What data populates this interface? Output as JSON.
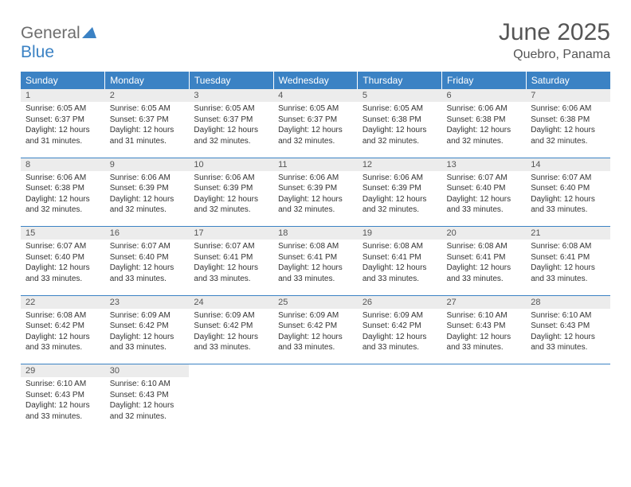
{
  "logo": {
    "text1": "General",
    "text2": "Blue"
  },
  "title": "June 2025",
  "location": "Quebro, Panama",
  "colors": {
    "header_bg": "#3b82c4",
    "header_text": "#ffffff",
    "daynum_bg": "#ececec",
    "body_text": "#333333",
    "title_text": "#555555",
    "logo_gray": "#6d6d6d",
    "logo_blue": "#3b82c4",
    "page_bg": "#ffffff"
  },
  "typography": {
    "title_fontsize": 30,
    "location_fontsize": 16,
    "weekday_fontsize": 12,
    "daynum_fontsize": 11,
    "body_fontsize": 10
  },
  "weekdays": [
    "Sunday",
    "Monday",
    "Tuesday",
    "Wednesday",
    "Thursday",
    "Friday",
    "Saturday"
  ],
  "weeks": [
    [
      {
        "n": "1",
        "sr": "Sunrise: 6:05 AM",
        "ss": "Sunset: 6:37 PM",
        "d1": "Daylight: 12 hours",
        "d2": "and 31 minutes."
      },
      {
        "n": "2",
        "sr": "Sunrise: 6:05 AM",
        "ss": "Sunset: 6:37 PM",
        "d1": "Daylight: 12 hours",
        "d2": "and 31 minutes."
      },
      {
        "n": "3",
        "sr": "Sunrise: 6:05 AM",
        "ss": "Sunset: 6:37 PM",
        "d1": "Daylight: 12 hours",
        "d2": "and 32 minutes."
      },
      {
        "n": "4",
        "sr": "Sunrise: 6:05 AM",
        "ss": "Sunset: 6:37 PM",
        "d1": "Daylight: 12 hours",
        "d2": "and 32 minutes."
      },
      {
        "n": "5",
        "sr": "Sunrise: 6:05 AM",
        "ss": "Sunset: 6:38 PM",
        "d1": "Daylight: 12 hours",
        "d2": "and 32 minutes."
      },
      {
        "n": "6",
        "sr": "Sunrise: 6:06 AM",
        "ss": "Sunset: 6:38 PM",
        "d1": "Daylight: 12 hours",
        "d2": "and 32 minutes."
      },
      {
        "n": "7",
        "sr": "Sunrise: 6:06 AM",
        "ss": "Sunset: 6:38 PM",
        "d1": "Daylight: 12 hours",
        "d2": "and 32 minutes."
      }
    ],
    [
      {
        "n": "8",
        "sr": "Sunrise: 6:06 AM",
        "ss": "Sunset: 6:38 PM",
        "d1": "Daylight: 12 hours",
        "d2": "and 32 minutes."
      },
      {
        "n": "9",
        "sr": "Sunrise: 6:06 AM",
        "ss": "Sunset: 6:39 PM",
        "d1": "Daylight: 12 hours",
        "d2": "and 32 minutes."
      },
      {
        "n": "10",
        "sr": "Sunrise: 6:06 AM",
        "ss": "Sunset: 6:39 PM",
        "d1": "Daylight: 12 hours",
        "d2": "and 32 minutes."
      },
      {
        "n": "11",
        "sr": "Sunrise: 6:06 AM",
        "ss": "Sunset: 6:39 PM",
        "d1": "Daylight: 12 hours",
        "d2": "and 32 minutes."
      },
      {
        "n": "12",
        "sr": "Sunrise: 6:06 AM",
        "ss": "Sunset: 6:39 PM",
        "d1": "Daylight: 12 hours",
        "d2": "and 32 minutes."
      },
      {
        "n": "13",
        "sr": "Sunrise: 6:07 AM",
        "ss": "Sunset: 6:40 PM",
        "d1": "Daylight: 12 hours",
        "d2": "and 33 minutes."
      },
      {
        "n": "14",
        "sr": "Sunrise: 6:07 AM",
        "ss": "Sunset: 6:40 PM",
        "d1": "Daylight: 12 hours",
        "d2": "and 33 minutes."
      }
    ],
    [
      {
        "n": "15",
        "sr": "Sunrise: 6:07 AM",
        "ss": "Sunset: 6:40 PM",
        "d1": "Daylight: 12 hours",
        "d2": "and 33 minutes."
      },
      {
        "n": "16",
        "sr": "Sunrise: 6:07 AM",
        "ss": "Sunset: 6:40 PM",
        "d1": "Daylight: 12 hours",
        "d2": "and 33 minutes."
      },
      {
        "n": "17",
        "sr": "Sunrise: 6:07 AM",
        "ss": "Sunset: 6:41 PM",
        "d1": "Daylight: 12 hours",
        "d2": "and 33 minutes."
      },
      {
        "n": "18",
        "sr": "Sunrise: 6:08 AM",
        "ss": "Sunset: 6:41 PM",
        "d1": "Daylight: 12 hours",
        "d2": "and 33 minutes."
      },
      {
        "n": "19",
        "sr": "Sunrise: 6:08 AM",
        "ss": "Sunset: 6:41 PM",
        "d1": "Daylight: 12 hours",
        "d2": "and 33 minutes."
      },
      {
        "n": "20",
        "sr": "Sunrise: 6:08 AM",
        "ss": "Sunset: 6:41 PM",
        "d1": "Daylight: 12 hours",
        "d2": "and 33 minutes."
      },
      {
        "n": "21",
        "sr": "Sunrise: 6:08 AM",
        "ss": "Sunset: 6:41 PM",
        "d1": "Daylight: 12 hours",
        "d2": "and 33 minutes."
      }
    ],
    [
      {
        "n": "22",
        "sr": "Sunrise: 6:08 AM",
        "ss": "Sunset: 6:42 PM",
        "d1": "Daylight: 12 hours",
        "d2": "and 33 minutes."
      },
      {
        "n": "23",
        "sr": "Sunrise: 6:09 AM",
        "ss": "Sunset: 6:42 PM",
        "d1": "Daylight: 12 hours",
        "d2": "and 33 minutes."
      },
      {
        "n": "24",
        "sr": "Sunrise: 6:09 AM",
        "ss": "Sunset: 6:42 PM",
        "d1": "Daylight: 12 hours",
        "d2": "and 33 minutes."
      },
      {
        "n": "25",
        "sr": "Sunrise: 6:09 AM",
        "ss": "Sunset: 6:42 PM",
        "d1": "Daylight: 12 hours",
        "d2": "and 33 minutes."
      },
      {
        "n": "26",
        "sr": "Sunrise: 6:09 AM",
        "ss": "Sunset: 6:42 PM",
        "d1": "Daylight: 12 hours",
        "d2": "and 33 minutes."
      },
      {
        "n": "27",
        "sr": "Sunrise: 6:10 AM",
        "ss": "Sunset: 6:43 PM",
        "d1": "Daylight: 12 hours",
        "d2": "and 33 minutes."
      },
      {
        "n": "28",
        "sr": "Sunrise: 6:10 AM",
        "ss": "Sunset: 6:43 PM",
        "d1": "Daylight: 12 hours",
        "d2": "and 33 minutes."
      }
    ],
    [
      {
        "n": "29",
        "sr": "Sunrise: 6:10 AM",
        "ss": "Sunset: 6:43 PM",
        "d1": "Daylight: 12 hours",
        "d2": "and 33 minutes."
      },
      {
        "n": "30",
        "sr": "Sunrise: 6:10 AM",
        "ss": "Sunset: 6:43 PM",
        "d1": "Daylight: 12 hours",
        "d2": "and 32 minutes."
      },
      null,
      null,
      null,
      null,
      null
    ]
  ]
}
